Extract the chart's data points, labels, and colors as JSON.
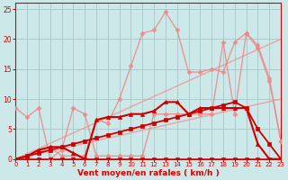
{
  "bg_color": "#cce8e8",
  "grid_color": "#aacccc",
  "text_color": "#dd0000",
  "xlabel": "Vent moyen/en rafales ( km/h )",
  "xlim": [
    0,
    23
  ],
  "ylim": [
    0,
    26
  ],
  "xticks": [
    0,
    1,
    2,
    3,
    4,
    5,
    6,
    7,
    8,
    9,
    10,
    11,
    12,
    13,
    14,
    15,
    16,
    17,
    18,
    19,
    20,
    21,
    22,
    23
  ],
  "yticks": [
    0,
    5,
    10,
    15,
    20,
    25
  ],
  "lines": [
    {
      "x": [
        0,
        1,
        2,
        3,
        4,
        5,
        6,
        7,
        8,
        9,
        10,
        11,
        12,
        13,
        14,
        15,
        16,
        17,
        18,
        19,
        20,
        21,
        22,
        23
      ],
      "y": [
        0.0,
        0.43,
        0.87,
        1.3,
        1.74,
        2.17,
        2.61,
        3.04,
        3.48,
        3.91,
        4.35,
        4.78,
        5.22,
        5.65,
        6.09,
        6.52,
        6.96,
        7.39,
        7.83,
        8.26,
        8.7,
        9.13,
        9.57,
        10.0
      ],
      "color": "#ee9999",
      "lw": 1.0,
      "marker": null,
      "ms": 0,
      "alpha": 0.85
    },
    {
      "x": [
        0,
        1,
        2,
        3,
        4,
        5,
        6,
        7,
        8,
        9,
        10,
        11,
        12,
        13,
        14,
        15,
        16,
        17,
        18,
        19,
        20,
        21,
        22,
        23
      ],
      "y": [
        0.0,
        0.87,
        1.74,
        2.61,
        3.48,
        4.35,
        5.22,
        6.09,
        6.96,
        7.83,
        8.7,
        9.57,
        10.43,
        11.3,
        12.17,
        13.04,
        13.91,
        14.78,
        15.65,
        16.52,
        17.39,
        18.26,
        19.13,
        20.0
      ],
      "color": "#ee9999",
      "lw": 1.0,
      "marker": null,
      "ms": 0,
      "alpha": 0.85
    },
    {
      "x": [
        0,
        1,
        2,
        3,
        4,
        5,
        6,
        7,
        8,
        9,
        10,
        11,
        12,
        13,
        14,
        15,
        16,
        17,
        18,
        19,
        20,
        21,
        22,
        23
      ],
      "y": [
        0.0,
        0.5,
        1.0,
        2.0,
        0.5,
        0.5,
        0.5,
        6.5,
        6.0,
        10.0,
        15.5,
        21.0,
        21.5,
        24.5,
        21.5,
        14.5,
        14.5,
        15.0,
        14.5,
        19.5,
        21.0,
        19.0,
        13.5,
        3.0
      ],
      "color": "#ee8888",
      "lw": 1.0,
      "marker": "D",
      "ms": 2.5,
      "alpha": 0.85
    },
    {
      "x": [
        0,
        1,
        2,
        3,
        4,
        5,
        6,
        7,
        8,
        9,
        10,
        11,
        12,
        13,
        14,
        15,
        16,
        17,
        18,
        19,
        20,
        21,
        22,
        23
      ],
      "y": [
        8.5,
        7.0,
        8.5,
        0.0,
        1.5,
        8.5,
        7.5,
        0.5,
        0.5,
        0.5,
        0.5,
        0.5,
        7.5,
        7.5,
        7.5,
        7.5,
        7.5,
        7.5,
        19.5,
        7.5,
        21.0,
        18.5,
        13.0,
        3.0
      ],
      "color": "#ee8888",
      "lw": 1.0,
      "marker": "D",
      "ms": 2.5,
      "alpha": 0.85
    },
    {
      "x": [
        0,
        1,
        2,
        3,
        4,
        5,
        6,
        7,
        8,
        9,
        10,
        11,
        12,
        13,
        14,
        15,
        16,
        17,
        18,
        19,
        20,
        21,
        22,
        23
      ],
      "y": [
        0.0,
        0.5,
        1.0,
        1.5,
        2.0,
        2.5,
        3.0,
        3.5,
        4.0,
        4.5,
        5.0,
        5.5,
        6.0,
        6.5,
        7.0,
        7.5,
        8.0,
        8.5,
        9.0,
        9.5,
        8.5,
        5.0,
        2.5,
        0.0
      ],
      "color": "#cc0000",
      "lw": 1.3,
      "marker": "s",
      "ms": 2.5,
      "alpha": 1.0
    },
    {
      "x": [
        0,
        1,
        2,
        3,
        4,
        5,
        6,
        7,
        8,
        9,
        10,
        11,
        12,
        13,
        14,
        15,
        16,
        17,
        18,
        19,
        20,
        21,
        22,
        23
      ],
      "y": [
        0.0,
        0.5,
        1.5,
        2.0,
        2.0,
        1.0,
        0.0,
        6.5,
        7.0,
        7.0,
        7.5,
        7.5,
        8.0,
        9.5,
        9.5,
        7.5,
        8.5,
        8.5,
        8.5,
        8.5,
        8.5,
        2.5,
        0.0,
        0.0
      ],
      "color": "#cc0000",
      "lw": 1.5,
      "marker": "^",
      "ms": 3,
      "alpha": 1.0
    },
    {
      "x": [
        0,
        1,
        2,
        3,
        4,
        5,
        6,
        7,
        8,
        9,
        10,
        11,
        12,
        13,
        14,
        15,
        16,
        17,
        18,
        19,
        20,
        21,
        22,
        23
      ],
      "y": [
        0,
        0,
        0,
        0,
        0,
        0,
        0,
        0,
        0,
        0,
        0,
        0,
        0,
        0,
        0,
        0,
        0,
        0,
        0,
        0,
        0,
        0,
        0,
        0
      ],
      "color": "#cc0000",
      "lw": 0.0,
      "marker": "v",
      "ms": 3,
      "alpha": 1.0
    }
  ]
}
